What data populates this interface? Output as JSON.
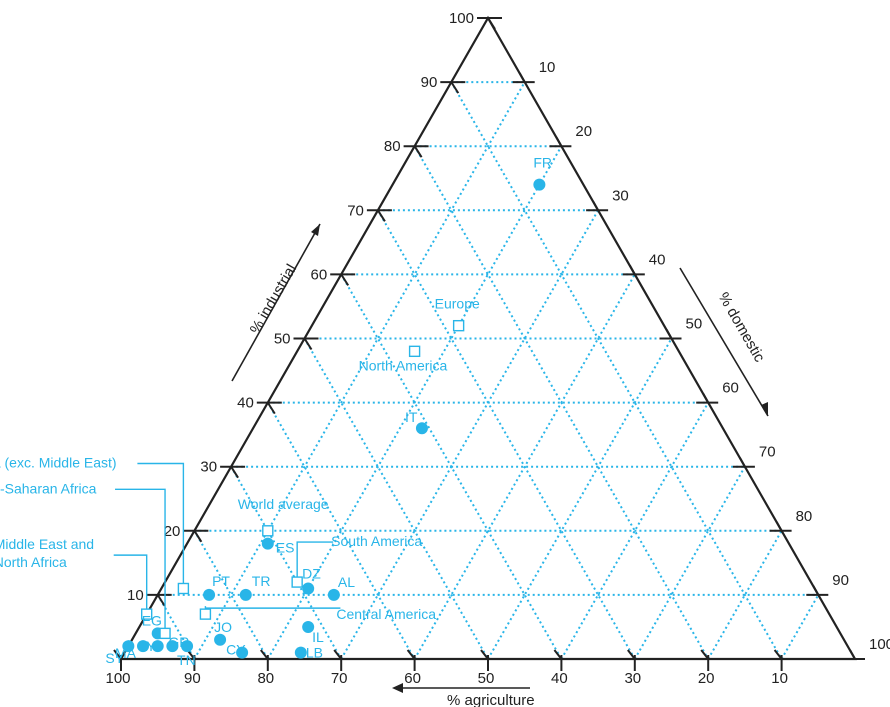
{
  "chart_data": {
    "type": "ternary-scatter",
    "axes": {
      "industrial": {
        "label": "% industrial",
        "ticks": [
          10,
          20,
          30,
          40,
          50,
          60,
          70,
          80,
          90,
          100
        ]
      },
      "domestic": {
        "label": "% domestic",
        "ticks": [
          10,
          20,
          30,
          40,
          50,
          60,
          70,
          80,
          90,
          100
        ]
      },
      "agriculture": {
        "label": "% agriculture",
        "ticks": [
          100,
          90,
          80,
          70,
          60,
          50,
          40,
          30,
          20,
          10
        ]
      }
    },
    "grid": true,
    "colors": {
      "points": "#29b5e8",
      "grid": "#29b5e8",
      "axes": "#222222"
    },
    "series": [
      {
        "name": "countries",
        "marker": "filled-circle",
        "points": [
          {
            "label": "FR",
            "industrial": 74,
            "domestic": 20,
            "agriculture": 6
          },
          {
            "label": "IT",
            "industrial": 36,
            "domestic": 23,
            "agriculture": 41
          },
          {
            "label": "ES",
            "industrial": 18,
            "domestic": 11,
            "agriculture": 71
          },
          {
            "label": "PT",
            "industrial": 10,
            "domestic": 7,
            "agriculture": 83
          },
          {
            "label": "TR",
            "industrial": 10,
            "domestic": 12,
            "agriculture": 78
          },
          {
            "label": "DZ",
            "industrial": 11,
            "domestic": 20,
            "agriculture": 69
          },
          {
            "label": "AL",
            "industrial": 10,
            "domestic": 24,
            "agriculture": 66
          },
          {
            "label": "IL",
            "industrial": 5,
            "domestic": 23,
            "agriculture": 72
          },
          {
            "label": "LB",
            "industrial": 1,
            "domestic": 24,
            "agriculture": 75
          },
          {
            "label": "CY",
            "industrial": 1,
            "domestic": 16,
            "agriculture": 83
          },
          {
            "label": "JO",
            "industrial": 3,
            "domestic": 12,
            "agriculture": 85
          },
          {
            "label": "EG",
            "industrial": 4,
            "domestic": 3,
            "agriculture": 93
          },
          {
            "label": "LY",
            "industrial": 2,
            "domestic": 4,
            "agriculture": 94
          },
          {
            "label": "GR",
            "industrial": 2,
            "domestic": 6,
            "agriculture": 92
          },
          {
            "label": "TN",
            "industrial": 2,
            "domestic": 8,
            "agriculture": 90
          },
          {
            "label": "MA",
            "industrial": 2,
            "domestic": 2,
            "agriculture": 96
          },
          {
            "label": "SY",
            "industrial": 2,
            "domestic": 0,
            "agriculture": 98
          }
        ]
      },
      {
        "name": "regions",
        "marker": "open-square",
        "points": [
          {
            "label": "Europe",
            "industrial": 52,
            "domestic": 20,
            "agriculture": 28
          },
          {
            "label": "North America",
            "industrial": 48,
            "domestic": 16,
            "agriculture": 36
          },
          {
            "label": "World average",
            "industrial": 20,
            "domestic": 10,
            "agriculture": 70
          },
          {
            "label": "South America",
            "industrial": 12,
            "domestic": 18,
            "agriculture": 70
          },
          {
            "label": "Central America",
            "industrial": 7,
            "domestic": 8,
            "agriculture": 85
          },
          {
            "label": "Asia (exc. Middle East)",
            "industrial": 11,
            "domestic": 3,
            "agriculture": 86
          },
          {
            "label": "Sub-Saharan Africa",
            "industrial": 4,
            "domestic": 4,
            "agriculture": 92
          },
          {
            "label": "Middle East and\nNorth Africa",
            "industrial": 7,
            "domestic": 0,
            "agriculture": 93
          }
        ]
      }
    ]
  }
}
